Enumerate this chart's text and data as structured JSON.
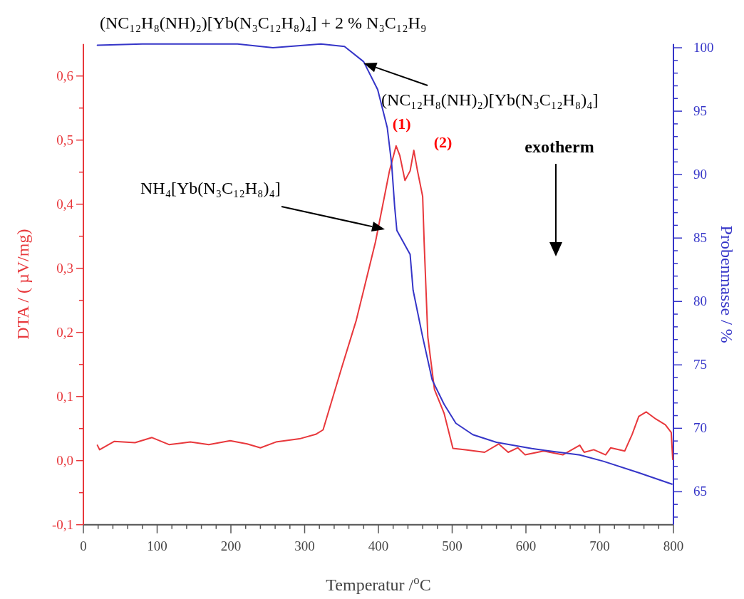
{
  "chart_data": {
    "type": "line",
    "title": "(NC₁₂H₈(NH)₂)[Yb(N₃C₁₂H₈)₄] + 2 % N₃C₁₂H₉",
    "xlabel": "Temperatur /$^{o}$C",
    "ylabel": "DTA / ( µV/mg)",
    "y2label": "Probenmasse / %",
    "xlim": [
      0,
      800
    ],
    "ylim": [
      -0.1,
      0.65
    ],
    "y2lim": [
      62.4,
      100.3
    ],
    "xticks": [
      0,
      {
        "value": 20,
        "label": null
      },
      {
        "value": 40,
        "label": null
      },
      {
        "value": 60,
        "label": null
      },
      {
        "value": 80,
        "label": null
      },
      100,
      {
        "value": 120,
        "label": null
      },
      {
        "value": 140,
        "label": null
      },
      {
        "value": 160,
        "label": null
      },
      {
        "value": 180,
        "label": null
      },
      200,
      {
        "value": 220,
        "label": null
      },
      {
        "value": 240,
        "label": null
      },
      {
        "value": 260,
        "label": null
      },
      {
        "value": 280,
        "label": null
      },
      300,
      {
        "value": 320,
        "label": null
      },
      {
        "value": 340,
        "label": null
      },
      {
        "value": 360,
        "label": null
      },
      {
        "value": 380,
        "label": null
      },
      400,
      {
        "value": 420,
        "label": null
      },
      {
        "value": 440,
        "label": null
      },
      {
        "value": 460,
        "label": null
      },
      {
        "value": 480,
        "label": null
      },
      500,
      {
        "value": 520,
        "label": null
      },
      {
        "value": 540,
        "label": null
      },
      {
        "value": 560,
        "label": null
      },
      {
        "value": 580,
        "label": null
      },
      600,
      {
        "value": 620,
        "label": null
      },
      {
        "value": 640,
        "label": null
      },
      {
        "value": 660,
        "label": null
      },
      {
        "value": 680,
        "label": null
      },
      700,
      {
        "value": 720,
        "label": null
      },
      {
        "value": 740,
        "label": null
      },
      {
        "value": 760,
        "label": null
      },
      {
        "value": 780,
        "label": null
      },
      800
    ],
    "yticks": [
      {
        "value": -0.1,
        "label": "-0,1"
      },
      {
        "value": -0.05,
        "label": null
      },
      {
        "value": 0,
        "label": "0,0"
      },
      {
        "value": 0.05,
        "label": null
      },
      {
        "value": 0.1,
        "label": "0,1"
      },
      {
        "value": 0.15,
        "label": null
      },
      {
        "value": 0.2,
        "label": "0,2"
      },
      {
        "value": 0.25,
        "label": null
      },
      {
        "value": 0.3,
        "label": "0,3"
      },
      {
        "value": 0.35,
        "label": null
      },
      {
        "value": 0.4,
        "label": "0,4"
      },
      {
        "value": 0.45,
        "label": null
      },
      {
        "value": 0.5,
        "label": "0,5"
      },
      {
        "value": 0.55,
        "label": null
      },
      {
        "value": 0.6,
        "label": "0,6"
      }
    ],
    "y2ticks": [
      {
        "value": 63,
        "label": null
      },
      {
        "value": 64,
        "label": null
      },
      65,
      {
        "value": 66,
        "label": null
      },
      {
        "value": 67,
        "label": null
      },
      {
        "value": 68,
        "label": null
      },
      {
        "value": 69,
        "label": null
      },
      70,
      {
        "value": 71,
        "label": null
      },
      {
        "value": 72,
        "label": null
      },
      {
        "value": 73,
        "label": null
      },
      {
        "value": 74,
        "label": null
      },
      75,
      {
        "value": 76,
        "label": null
      },
      {
        "value": 77,
        "label": null
      },
      {
        "value": 78,
        "label": null
      },
      {
        "value": 79,
        "label": null
      },
      80,
      {
        "value": 81,
        "label": null
      },
      {
        "value": 82,
        "label": null
      },
      {
        "value": 83,
        "label": null
      },
      {
        "value": 84,
        "label": null
      },
      85,
      {
        "value": 86,
        "label": null
      },
      {
        "value": 87,
        "label": null
      },
      {
        "value": 88,
        "label": null
      },
      {
        "value": 89,
        "label": null
      },
      90,
      {
        "value": 91,
        "label": null
      },
      {
        "value": 92,
        "label": null
      },
      {
        "value": 93,
        "label": null
      },
      {
        "value": 94,
        "label": null
      },
      95,
      {
        "value": 96,
        "label": null
      },
      {
        "value": 97,
        "label": null
      },
      {
        "value": 98,
        "label": null
      },
      {
        "value": 99,
        "label": null
      },
      100
    ],
    "grid": false,
    "marker": "none",
    "line_style": "solid",
    "series": [
      {
        "color": "#e8383c",
        "x": [
          19,
          22,
          42,
          70,
          93,
          116,
          145,
          170,
          199,
          222,
          240,
          261,
          293,
          315,
          325,
          351,
          370,
          396,
          415,
          424,
          429,
          436,
          443,
          448,
          453,
          460,
          462,
          467,
          476,
          489,
          501,
          518,
          544,
          563,
          576,
          589,
          599,
          624,
          650,
          673,
          679,
          692,
          708,
          715,
          734,
          744,
          753,
          763,
          776,
          789,
          797,
          799
        ],
        "values": [
          0.024,
          0.017,
          0.03,
          0.028,
          0.036,
          0.025,
          0.029,
          0.025,
          0.031,
          0.026,
          0.02,
          0.029,
          0.034,
          0.041,
          0.048,
          0.148,
          0.219,
          0.341,
          0.452,
          0.491,
          0.476,
          0.437,
          0.452,
          0.484,
          0.452,
          0.412,
          0.341,
          0.193,
          0.111,
          0.074,
          0.019,
          0.017,
          0.013,
          0.026,
          0.013,
          0.02,
          0.009,
          0.015,
          0.009,
          0.024,
          0.013,
          0.017,
          0.009,
          0.02,
          0.015,
          0.041,
          0.069,
          0.076,
          0.065,
          0.056,
          0.044,
          0.002
        ]
      },
      {
        "color": "#3535c8",
        "axis": "y2",
        "x": [
          19,
          80,
          209,
          257,
          322,
          354,
          380,
          399,
          412,
          418,
          422,
          425,
          443,
          447,
          460,
          473,
          489,
          505,
          528,
          560,
          608,
          673,
          705,
          753,
          798
        ],
        "values": [
          100.2,
          100.3,
          100.3,
          100.0,
          100.3,
          100.1,
          98.9,
          96.7,
          93.7,
          90.8,
          87.5,
          85.6,
          83.7,
          80.9,
          77.2,
          73.8,
          71.9,
          70.4,
          69.5,
          68.9,
          68.4,
          67.9,
          67.4,
          66.5,
          65.6
        ]
      }
    ],
    "annotations": [
      {
        "text": "(NC₁₂H₈(NH)₂)[Yb(N₃C₁₂H₈)₄]",
        "x": 380,
        "y": 0.62
      },
      "NH₄[Yb(N₃C₁₂H₈)₄]",
      {
        "text": "(1)",
        "x": 424,
        "y": 0.491
      },
      {
        "text": "(2)",
        "x": 448,
        "y": 0.484
      },
      "exotherm"
    ]
  }
}
